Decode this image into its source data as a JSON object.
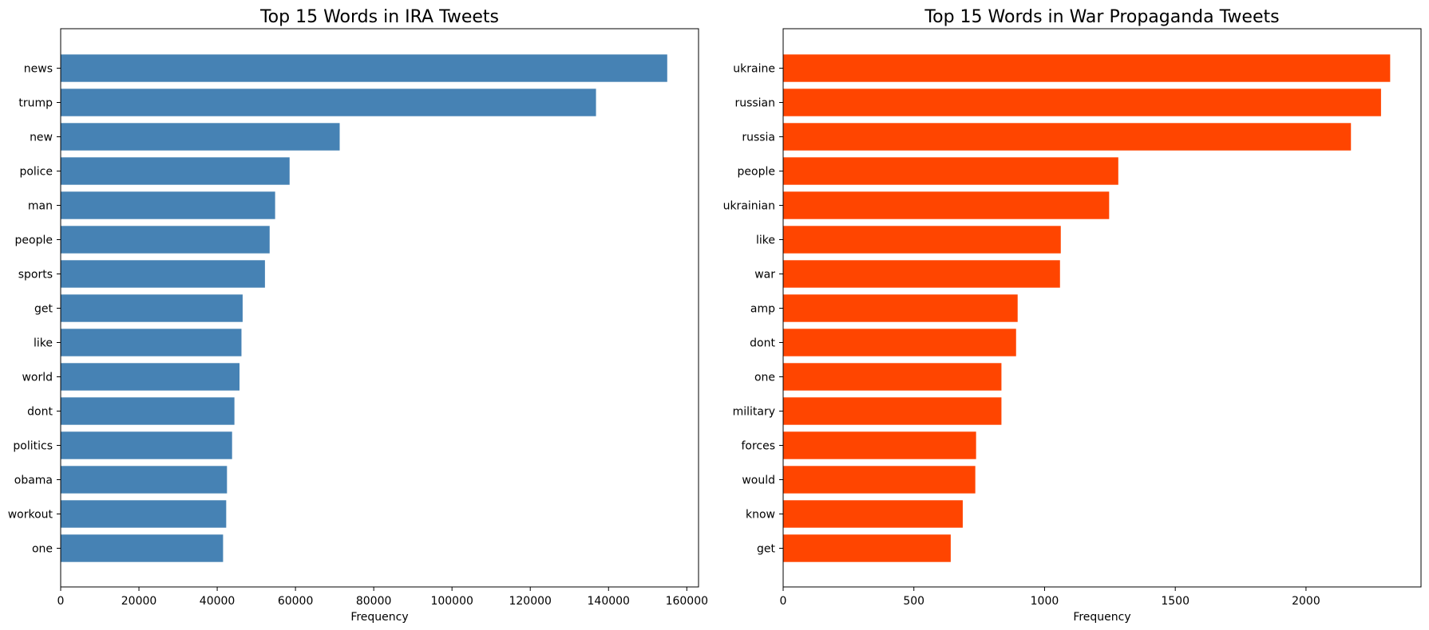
{
  "chart_data": [
    {
      "type": "bar",
      "orientation": "horizontal",
      "title": "Top 15 Words in IRA Tweets",
      "xlabel": "Frequency",
      "ylabel": "",
      "color": "#4682b4",
      "xlim": [
        0,
        163000
      ],
      "xticks": [
        0,
        20000,
        40000,
        60000,
        80000,
        100000,
        120000,
        140000,
        160000
      ],
      "categories": [
        "news",
        "trump",
        "new",
        "police",
        "man",
        "people",
        "sports",
        "get",
        "like",
        "world",
        "dont",
        "politics",
        "obama",
        "workout",
        "one"
      ],
      "values": [
        155000,
        136800,
        71300,
        58500,
        54800,
        53400,
        52200,
        46500,
        46200,
        45700,
        44400,
        43800,
        42500,
        42300,
        41500
      ],
      "grid": false
    },
    {
      "type": "bar",
      "orientation": "horizontal",
      "title": "Top 15 Words in War Propaganda Tweets",
      "xlabel": "Frequency",
      "ylabel": "",
      "color": "#ff4500",
      "xlim": [
        0,
        2440
      ],
      "xticks": [
        0,
        500,
        1000,
        1500,
        2000
      ],
      "categories": [
        "ukraine",
        "russian",
        "russia",
        "people",
        "ukrainian",
        "like",
        "war",
        "amp",
        "dont",
        "one",
        "military",
        "forces",
        "would",
        "know",
        "get"
      ],
      "values": [
        2322,
        2287,
        2172,
        1282,
        1247,
        1062,
        1059,
        897,
        891,
        835,
        835,
        738,
        735,
        687,
        641
      ],
      "grid": false
    }
  ]
}
